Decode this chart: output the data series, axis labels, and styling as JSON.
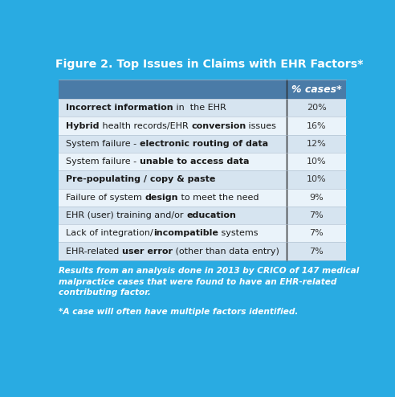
{
  "title": "Figure 2. Top Issues in Claims with EHR Factors*",
  "header": "% cases*",
  "rows": [
    {
      "text_parts": [
        {
          "text": "Incorrect information",
          "bold": true
        },
        {
          "text": " in  the EHR",
          "bold": false
        }
      ],
      "value": "20%"
    },
    {
      "text_parts": [
        {
          "text": "Hybrid",
          "bold": true
        },
        {
          "text": " health records/EHR ",
          "bold": false
        },
        {
          "text": "conversion",
          "bold": true
        },
        {
          "text": " issues",
          "bold": false
        }
      ],
      "value": "16%"
    },
    {
      "text_parts": [
        {
          "text": "System failure - ",
          "bold": false
        },
        {
          "text": "electronic routing of data",
          "bold": true
        }
      ],
      "value": "12%"
    },
    {
      "text_parts": [
        {
          "text": "System failure - ",
          "bold": false
        },
        {
          "text": "unable to access data",
          "bold": true
        }
      ],
      "value": "10%"
    },
    {
      "text_parts": [
        {
          "text": "Pre-populating / copy & paste",
          "bold": true
        }
      ],
      "value": "10%"
    },
    {
      "text_parts": [
        {
          "text": "Failure of system ",
          "bold": false
        },
        {
          "text": "design",
          "bold": true
        },
        {
          "text": " to meet the need",
          "bold": false
        }
      ],
      "value": "9%"
    },
    {
      "text_parts": [
        {
          "text": "EHR (user) training and/or ",
          "bold": false
        },
        {
          "text": "education",
          "bold": true
        }
      ],
      "value": "7%"
    },
    {
      "text_parts": [
        {
          "text": "Lack of integration/",
          "bold": false
        },
        {
          "text": "incompatible",
          "bold": true
        },
        {
          "text": " systems",
          "bold": false
        }
      ],
      "value": "7%"
    },
    {
      "text_parts": [
        {
          "text": "EHR-related ",
          "bold": false
        },
        {
          "text": "user error",
          "bold": true
        },
        {
          "text": " (other than data entry)",
          "bold": false
        }
      ],
      "value": "7%"
    }
  ],
  "footnote1": "Results from an analysis done in 2013 by CRICO of 147 medical\nmalpractice cases that were found to have an EHR-related\ncontributing factor.",
  "footnote2": "*A case will often have multiple factors identified.",
  "bg_color": "#29ABE2",
  "header_bg": "#4A7BA7",
  "row_colors": [
    "#D6E4F0",
    "#EAF3FA"
  ],
  "title_color": "#FFFFFF",
  "header_text_color": "#FFFFFF",
  "row_text_color": "#1A1A1A",
  "value_text_color": "#333333",
  "footnote_color": "#FFFFFF",
  "divider_color": "#2a2a2a",
  "line_color": "#aabbcc"
}
